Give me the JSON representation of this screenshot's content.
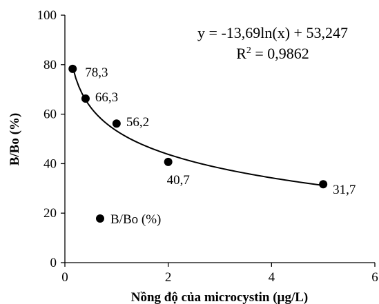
{
  "chart_data": {
    "type": "scatter",
    "xlabel": "Nồng độ của microcystin (µg/L)",
    "ylabel": "B/Bo (%)",
    "xlim": [
      0,
      6
    ],
    "ylim": [
      0,
      100
    ],
    "x_ticks": [
      "0",
      "2",
      "4",
      "6"
    ],
    "y_ticks": [
      "0",
      "20",
      "40",
      "60",
      "80",
      "100"
    ],
    "grid": false,
    "legend": {
      "position": "bottom-left",
      "entries": [
        "B/Bo (%)"
      ]
    },
    "series": [
      {
        "name": "B/Bo (%)",
        "marker_color": "#000000",
        "points": [
          {
            "x": 0.15,
            "y": 78.3,
            "label": "78,3"
          },
          {
            "x": 0.4,
            "y": 66.3,
            "label": "66,3"
          },
          {
            "x": 1.0,
            "y": 56.2,
            "label": "56,2"
          },
          {
            "x": 2.0,
            "y": 40.7,
            "label": "40,7"
          },
          {
            "x": 5.0,
            "y": 31.7,
            "label": "31,7"
          }
        ]
      }
    ],
    "trendline": {
      "type": "logarithmic",
      "a": -13.69,
      "b": 53.247,
      "color": "#000000"
    },
    "annotations": {
      "equation": "y = -13,69ln(x) + 53,247",
      "r2_prefix": "R",
      "r2_sup": "2",
      "r2_suffix": " = 0,9862"
    }
  }
}
